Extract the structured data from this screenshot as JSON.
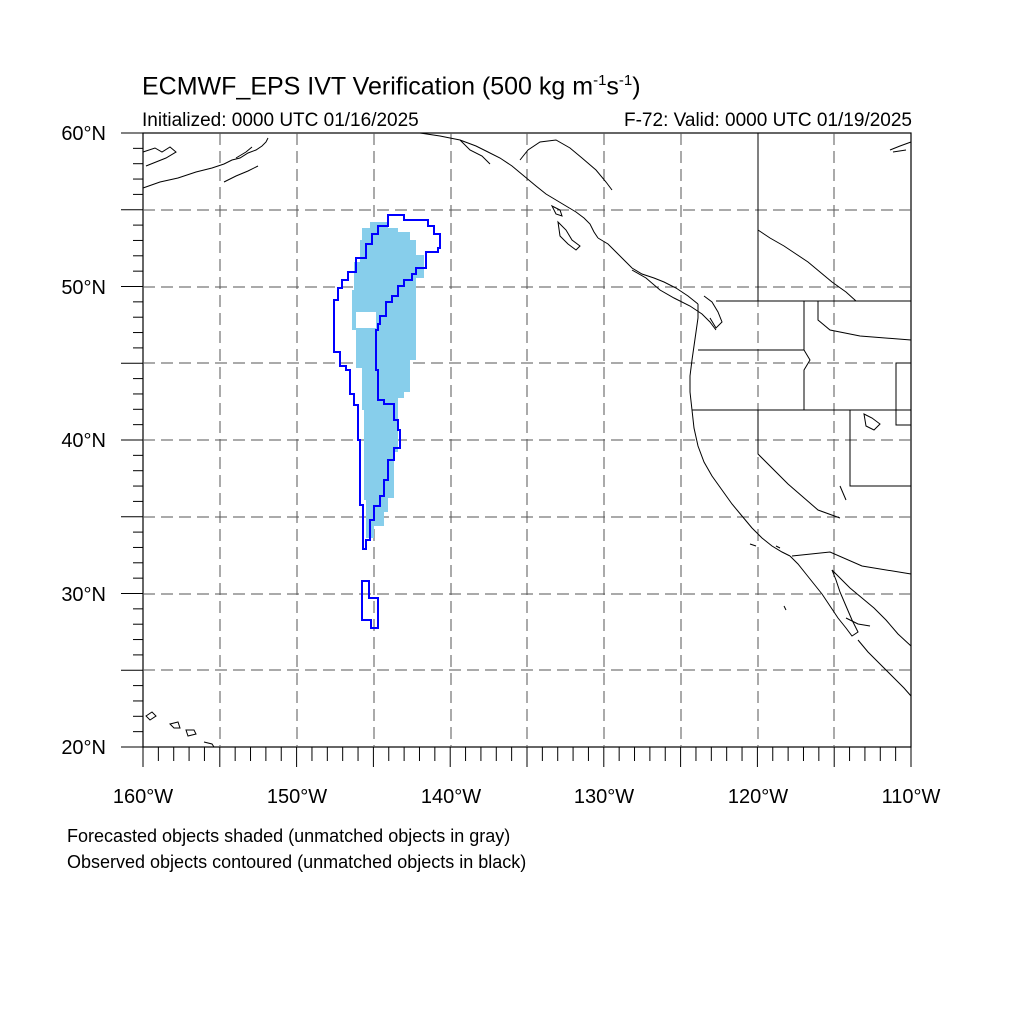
{
  "title": {
    "main": "ECMWF_EPS IVT Verification (500 kg m",
    "sup1": "-1",
    "mid": "s",
    "sup2": "-1",
    "close": ")"
  },
  "subtitle": {
    "initialized": "Initialized: 0000 UTC 01/16/2025",
    "valid": "F-72: Valid: 0000 UTC 01/19/2025"
  },
  "axes": {
    "lat_labels": [
      "60°N",
      "50°N",
      "40°N",
      "30°N",
      "20°N"
    ],
    "lon_labels": [
      "160°W",
      "150°W",
      "140°W",
      "130°W",
      "120°W",
      "110°W"
    ],
    "lon_range": [
      -160,
      -110
    ],
    "lat_range": [
      20,
      60
    ],
    "grid": "dashed, every 5 degrees"
  },
  "notes": {
    "line1": "Forecasted objects shaded (unmatched objects in gray)",
    "line2": "Observed objects contoured (unmatched objects in black)"
  },
  "colors": {
    "forecast_fill": "#87ceeb",
    "observed_contour": "#0000ff",
    "coastline": "#000000",
    "grid": "#555555"
  }
}
